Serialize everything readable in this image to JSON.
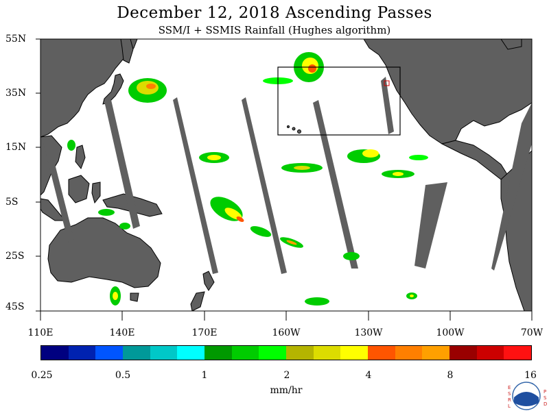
{
  "header": {
    "title": "December 12, 2018  Ascending Passes",
    "subtitle": "SSM/I + SSMIS Rainfall (Hughes algorithm)"
  },
  "map": {
    "lat_labels": [
      "55N",
      "35N",
      "15N",
      "5S",
      "25S",
      "45S"
    ],
    "lon_labels": [
      "110E",
      "140E",
      "170E",
      "160W",
      "130W",
      "100W",
      "70W"
    ],
    "colors": {
      "land": "#5f5f5f",
      "ocean": "#ffffff",
      "swath_gap": "#5f5f5f",
      "box": "#000000"
    }
  },
  "colorbar": {
    "colors": [
      "#000080",
      "#0022b0",
      "#0055ff",
      "#009999",
      "#00c8c8",
      "#00ffff",
      "#009900",
      "#00cc00",
      "#00ff00",
      "#b4b400",
      "#dcdc00",
      "#ffff00",
      "#ff5500",
      "#ff7f00",
      "#ffa000",
      "#990000",
      "#cc0000",
      "#ff1111"
    ],
    "labels": [
      "0.25",
      "0.5",
      "1",
      "2",
      "4",
      "8",
      "16"
    ],
    "units": "mm/hr"
  },
  "logo": {
    "left_text": "ESRL",
    "right_text": "PSD"
  }
}
